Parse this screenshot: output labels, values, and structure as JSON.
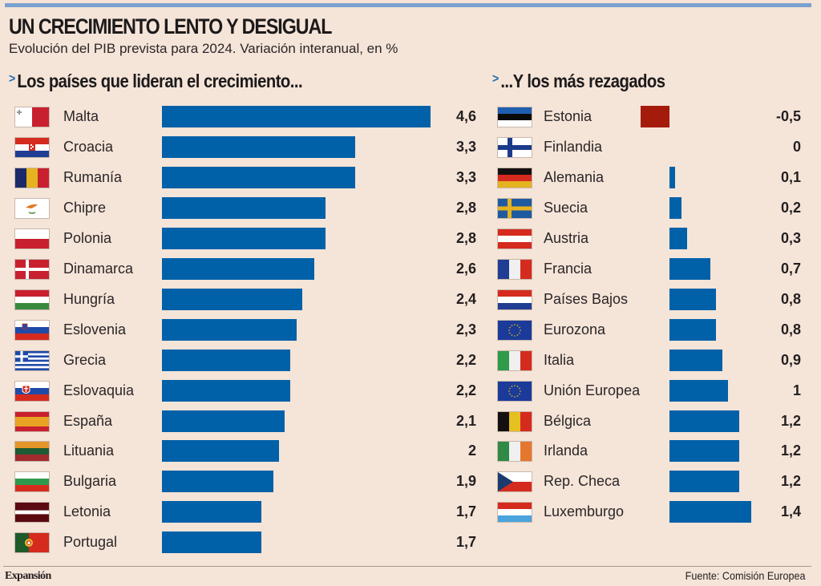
{
  "header": {
    "title": "UN CRECIMIENTO LENTO Y DESIGUAL",
    "subtitle": "Evolución del PIB prevista para 2024. Variación interanual, en %"
  },
  "colors": {
    "positive": "#0061a8",
    "negative": "#a51b0b",
    "accent": "#7aa2cd",
    "background": "#f5e4d8"
  },
  "footer": {
    "brand": "Expansión",
    "source": "Fuente: Comisión Europea"
  },
  "chart_data": [
    {
      "type": "bar",
      "orientation": "horizontal",
      "title": "Los países que lideran el crecimiento...",
      "xlabel": "",
      "ylabel": "",
      "unit": "%",
      "categories": [
        "Malta",
        "Croacia",
        "Rumanía",
        "Chipre",
        "Polonia",
        "Dinamarca",
        "Hungría",
        "Eslovenia",
        "Grecia",
        "Eslovaquia",
        "España",
        "Lituania",
        "Bulgaria",
        "Letonia",
        "Portugal"
      ],
      "flags": [
        "mt",
        "hr",
        "ro",
        "cy",
        "pl",
        "dk",
        "hu",
        "si",
        "gr",
        "sk",
        "es",
        "lt",
        "bg",
        "lv",
        "pt"
      ],
      "values": [
        4.6,
        3.3,
        3.3,
        2.8,
        2.8,
        2.6,
        2.4,
        2.3,
        2.2,
        2.2,
        2.1,
        2.0,
        1.9,
        1.7,
        1.7
      ],
      "labels": [
        "4,6",
        "3,3",
        "3,3",
        "2,8",
        "2,8",
        "2,6",
        "2,4",
        "2,3",
        "2,2",
        "2,2",
        "2,1",
        "2",
        "1,9",
        "1,7",
        "1,7"
      ],
      "grid": false,
      "legend": "none"
    },
    {
      "type": "bar",
      "orientation": "horizontal",
      "title": "...Y los más rezagados",
      "xlabel": "",
      "ylabel": "",
      "unit": "%",
      "categories": [
        "Estonia",
        "Finlandia",
        "Alemania",
        "Suecia",
        "Austria",
        "Francia",
        "Países Bajos",
        "Eurozona",
        "Italia",
        "Unión Europea",
        "Bélgica",
        "Irlanda",
        "Rep. Checa",
        "Luxemburgo"
      ],
      "flags": [
        "ee",
        "fi",
        "de",
        "se",
        "at",
        "fr",
        "nl",
        "eu",
        "it",
        "eu",
        "be",
        "ie",
        "cz",
        "lu"
      ],
      "values": [
        -0.5,
        0,
        0.1,
        0.2,
        0.3,
        0.7,
        0.8,
        0.8,
        0.9,
        1.0,
        1.2,
        1.2,
        1.2,
        1.4
      ],
      "labels": [
        "-0,5",
        "0",
        "0,1",
        "0,2",
        "0,3",
        "0,7",
        "0,8",
        "0,8",
        "0,9",
        "1",
        "1,2",
        "1,2",
        "1,2",
        "1,4"
      ],
      "grid": false,
      "legend": "none"
    }
  ]
}
